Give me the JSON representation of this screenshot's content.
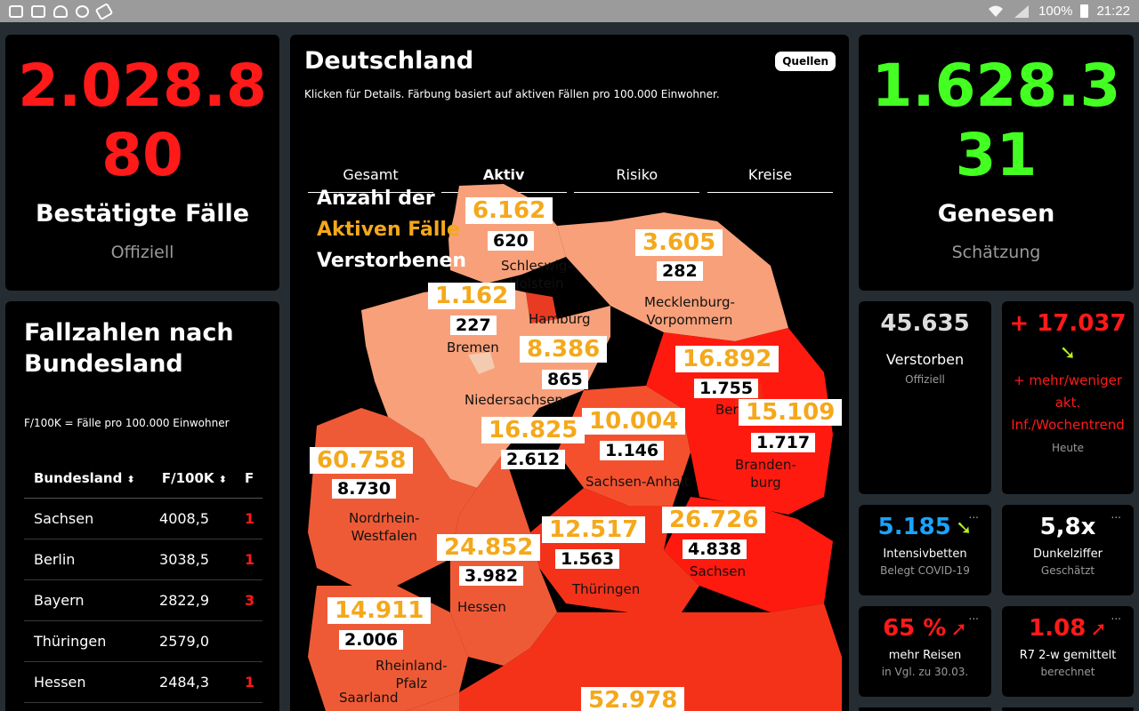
{
  "status_bar": {
    "battery": "100%",
    "time": "21:22"
  },
  "confirmed": {
    "number_line1": "2.028.8",
    "number_line2": "80",
    "label": "Bestätigte Fälle",
    "sub": "Offiziell"
  },
  "recovered": {
    "number_line1": "1.628.3",
    "number_line2": "31",
    "label": "Genesen",
    "sub": "Schätzung"
  },
  "map": {
    "title": "Deutschland",
    "sources_button": "Quellen",
    "hint": "Klicken für Details. Färbung basiert auf aktiven Fällen pro 100.000 Einwohner.",
    "tabs": [
      "Gesamt",
      "Aktiv",
      "Risiko",
      "Kreise"
    ],
    "legend": {
      "line1": "Anzahl der",
      "line2": "Aktiven Fälle",
      "line3": "Verstorbenen"
    },
    "states": [
      {
        "name": "Schleswig-\nHolstein",
        "active": "6.162",
        "deaths": "620"
      },
      {
        "name": "Mecklenburg-\nVorpommern",
        "active": "3.605",
        "deaths": "282"
      },
      {
        "name": "Hamburg",
        "active": "",
        "deaths": ""
      },
      {
        "name": "Bremen",
        "active": "1.162",
        "deaths": "227"
      },
      {
        "name": "Niedersachsen",
        "active": "8.386",
        "deaths": "865"
      },
      {
        "name": "Berlin",
        "active": "16.892",
        "deaths": "1.755"
      },
      {
        "name": "Branden-\nburg",
        "active": "15.109",
        "deaths": "1.717"
      },
      {
        "name": "Sachsen-Anhalt",
        "active": "10.004",
        "deaths": "1.146"
      },
      {
        "name": "",
        "active": "16.825",
        "deaths": "2.612"
      },
      {
        "name": "Nordrhein-\nWestfalen",
        "active": "60.758",
        "deaths": "8.730"
      },
      {
        "name": "Hessen",
        "active": "24.852",
        "deaths": "3.982"
      },
      {
        "name": "Thüringen",
        "active": "12.517",
        "deaths": "1.563"
      },
      {
        "name": "Sachsen",
        "active": "26.726",
        "deaths": "4.838"
      },
      {
        "name": "Rheinland-\nPfalz",
        "active": "14.911",
        "deaths": "2.006"
      },
      {
        "name": "Saarland",
        "active": "",
        "deaths": ""
      },
      {
        "name": "",
        "active": "52.978",
        "deaths": ""
      }
    ]
  },
  "state_table": {
    "title": "Fallzahlen nach Bundesland",
    "note": "F/100K = Fälle pro 100.000 Einwohner",
    "columns": [
      "Bundesland",
      "F/100K",
      "F"
    ],
    "rows": [
      {
        "name": "Sachsen",
        "value": "4008,5",
        "extra": "1"
      },
      {
        "name": "Berlin",
        "value": "3038,5",
        "extra": "1"
      },
      {
        "name": "Bayern",
        "value": "2822,9",
        "extra": "3"
      },
      {
        "name": "Thüringen",
        "value": "2579,0",
        "extra": ""
      },
      {
        "name": "Hessen",
        "value": "2484,3",
        "extra": "1"
      }
    ]
  },
  "tiles": {
    "deaths": {
      "number": "45.635",
      "label": "Verstorben",
      "sub": "Offiziell"
    },
    "trend": {
      "number": "+ 17.037",
      "label": "+ mehr/weniger akt. Inf./Wochentrend",
      "sub": "Heute"
    },
    "icu": {
      "number": "5.185",
      "label": "Intensivbetten",
      "sub": "Belegt COVID-19"
    },
    "dark": {
      "number": "5,8x",
      "label": "Dunkelziffer",
      "sub": "Geschätzt"
    },
    "travel": {
      "number": "65 %",
      "label": "mehr Reisen",
      "sub": "in Vgl. zu 30.03."
    },
    "r7": {
      "number": "1.08",
      "label": "R7 2-w gemittelt",
      "sub": "berechnet"
    },
    "more_dots": "..."
  },
  "colors": {
    "red": "#ff1a1a",
    "green": "#44ff22",
    "orange": "#f4a81b",
    "blue": "#1aa3ff",
    "trend_arrow_green": "#b6f01e",
    "trend_arrow_red": "#ff1a1a"
  }
}
